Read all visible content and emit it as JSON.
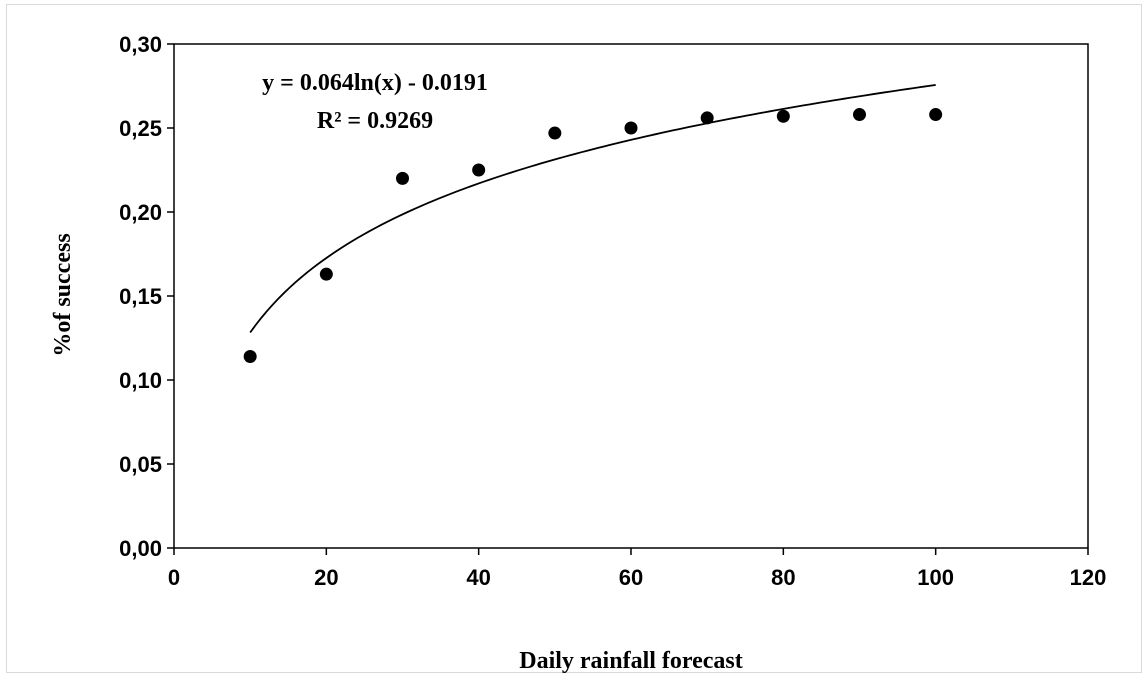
{
  "chart_data": {
    "type": "scatter",
    "xlabel": "Daily rainfall forecast",
    "ylabel": "%of success",
    "xlim": [
      0,
      120
    ],
    "ylim": [
      0,
      0.3
    ],
    "x_ticks": [
      0,
      20,
      40,
      60,
      80,
      100,
      120
    ],
    "y_ticks": [
      0,
      0.05,
      0.1,
      0.15,
      0.2,
      0.25,
      0.3
    ],
    "x_tick_labels": [
      "0",
      "20",
      "40",
      "60",
      "80",
      "100",
      "120"
    ],
    "y_tick_labels": [
      "0,00",
      "0,05",
      "0,10",
      "0,15",
      "0,20",
      "0,25",
      "0,30"
    ],
    "grid": false,
    "series": [
      {
        "x": [
          10,
          20,
          30,
          40,
          50,
          60,
          70,
          80,
          90,
          100
        ],
        "y": [
          0.114,
          0.163,
          0.22,
          0.225,
          0.247,
          0.25,
          0.256,
          0.257,
          0.258,
          0.258
        ],
        "color": "#000000"
      }
    ],
    "trendline": {
      "type": "logarithmic",
      "a": 0.064,
      "b": -0.0191,
      "x_range": [
        10,
        100
      ],
      "color": "#000000"
    },
    "annotations": {
      "equation": "y = 0.064ln(x) - 0.0191",
      "r_squared": "R² = 0.9269"
    }
  }
}
